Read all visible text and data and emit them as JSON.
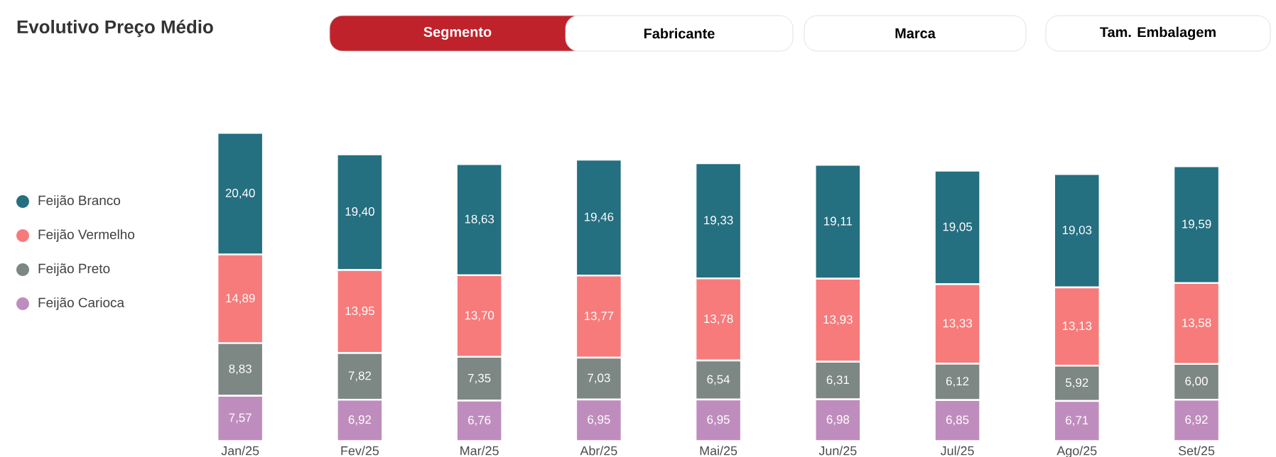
{
  "chart_data": {
    "type": "bar",
    "stacked": true,
    "title": "Evolutivo Preço Médio",
    "annotations": [
      "Segmento",
      "Fabricante",
      "Marca",
      "Tam. Embalagem"
    ],
    "categories": [
      "Jan/25",
      "Fev/25",
      "Mar/25",
      "Abr/25",
      "Mai/25",
      "Jun/25",
      "Jul/25",
      "Ago/25",
      "Set/25"
    ],
    "legend": "left",
    "series": [
      {
        "name": "Feijão Carioca",
        "color": "#bf8dbd",
        "values": [
          7.57,
          6.92,
          6.76,
          6.95,
          6.95,
          6.98,
          6.85,
          6.71,
          6.92
        ],
        "value_labels": [
          "7,57",
          "6,92",
          "6,76",
          "6,95",
          "6,95",
          "6,98",
          "6,85",
          "6,71",
          "6,92"
        ]
      },
      {
        "name": "Feijão Preto",
        "color": "#7d8784",
        "values": [
          8.83,
          7.82,
          7.35,
          7.03,
          6.54,
          6.31,
          6.12,
          5.92,
          6.0
        ],
        "value_labels": [
          "8,83",
          "7,82",
          "7,35",
          "7,03",
          "6,54",
          "6,31",
          "6,12",
          "5,92",
          "6,00"
        ]
      },
      {
        "name": "Feijão Vermelho",
        "color": "#f77b7b",
        "values": [
          14.89,
          13.95,
          13.7,
          13.77,
          13.78,
          13.93,
          13.33,
          13.13,
          13.58
        ],
        "value_labels": [
          "14,89",
          "13,95",
          "13,70",
          "13,77",
          "13,78",
          "13,93",
          "13,33",
          "13,13",
          "13,58"
        ]
      },
      {
        "name": "Feijão Branco",
        "color": "#246f80",
        "values": [
          20.4,
          19.4,
          18.63,
          19.46,
          19.33,
          19.11,
          19.05,
          19.03,
          19.59
        ],
        "value_labels": [
          "20,40",
          "19,40",
          "18,63",
          "19,46",
          "19,33",
          "19,11",
          "19,05",
          "19,03",
          "19,59"
        ]
      }
    ]
  }
}
